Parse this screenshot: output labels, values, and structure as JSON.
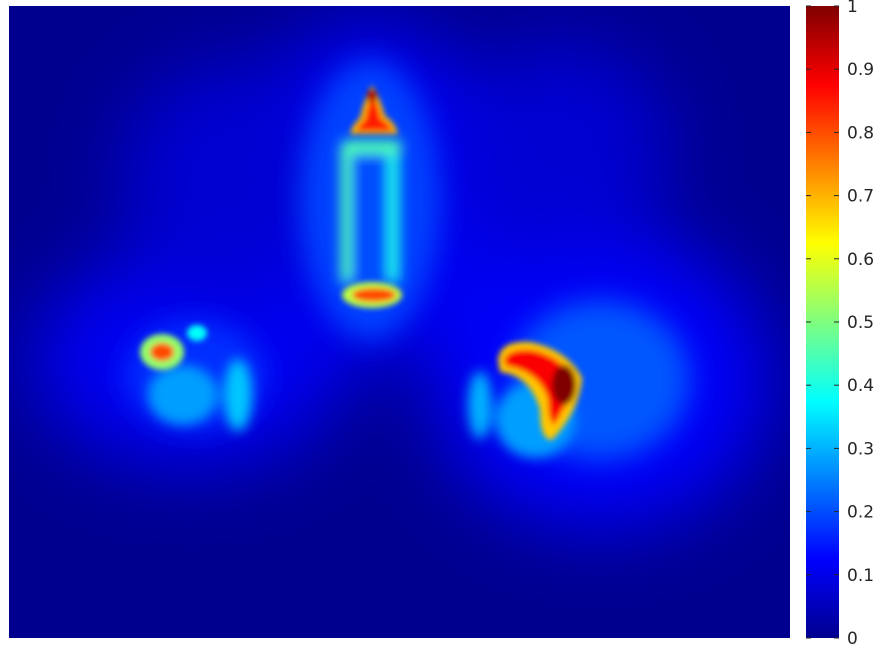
{
  "chart_data": {
    "type": "heatmap",
    "title": "",
    "xlabel": "",
    "ylabel": "",
    "colormap": "jet",
    "clim": [
      0,
      1
    ],
    "colorbar": {
      "ticks": [
        0,
        0.1,
        0.2,
        0.3,
        0.4,
        0.5,
        0.6,
        0.7,
        0.8,
        0.9,
        1
      ],
      "tick_labels": [
        "0",
        "0.1",
        "0.2",
        "0.3",
        "0.4",
        "0.5",
        "0.6",
        "0.7",
        "0.8",
        "0.9",
        "1"
      ]
    },
    "background_level": 0.05,
    "hotspots": [
      {
        "name": "bottle-top",
        "peak": 0.85
      },
      {
        "name": "bottle-body-left-edge",
        "peak": 0.45
      },
      {
        "name": "bottle-body-right-edge",
        "peak": 0.4
      },
      {
        "name": "bottle-base",
        "peak": 0.8
      },
      {
        "name": "left-object",
        "peak": 0.8
      },
      {
        "name": "right-object",
        "peak": 1.0
      }
    ],
    "grid": false
  }
}
